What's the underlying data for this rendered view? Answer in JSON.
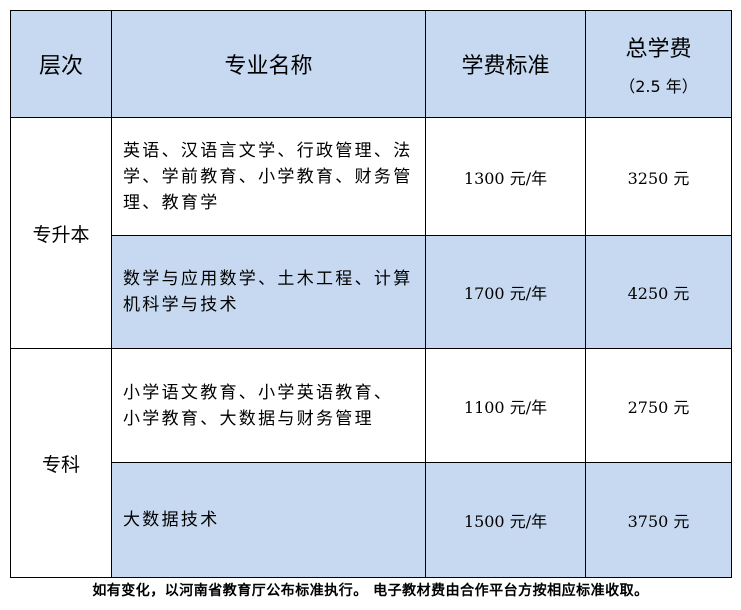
{
  "header": {
    "level": "层次",
    "major": "专业名称",
    "fee_standard": "学费标准",
    "total_fee": "总学费",
    "total_fee_note": "（2.5 年）"
  },
  "groups": [
    {
      "level": "专升本",
      "rows": [
        {
          "major_lines": [
            "英语、汉语言文学、行政管理、法",
            "学、学前教育、小学教育、财务管",
            "理、教育学"
          ],
          "fee": "1300 元/年",
          "total": "3250 元",
          "shaded": false
        },
        {
          "major_lines": [
            "数学与应用数学、土木工程、计算",
            "机科学与技术"
          ],
          "fee": "1700 元/年",
          "total": "4250 元",
          "shaded": true
        }
      ]
    },
    {
      "level": "专科",
      "rows": [
        {
          "major_lines": [
            "小学语文教育、小学英语教育、",
            "小学教育、大数据与财务管理"
          ],
          "fee": "1100 元/年",
          "total": "2750 元",
          "shaded": false
        },
        {
          "major_lines": [
            "大数据技术"
          ],
          "fee": "1500 元/年",
          "total": "3750 元",
          "shaded": true
        }
      ]
    }
  ],
  "footer": "如有变化，以河南省教育厅公布标准执行。 电子教材费由合作平台方按相应标准收取。",
  "colors": {
    "shade": "#c6d9f0",
    "border": "#000000"
  }
}
